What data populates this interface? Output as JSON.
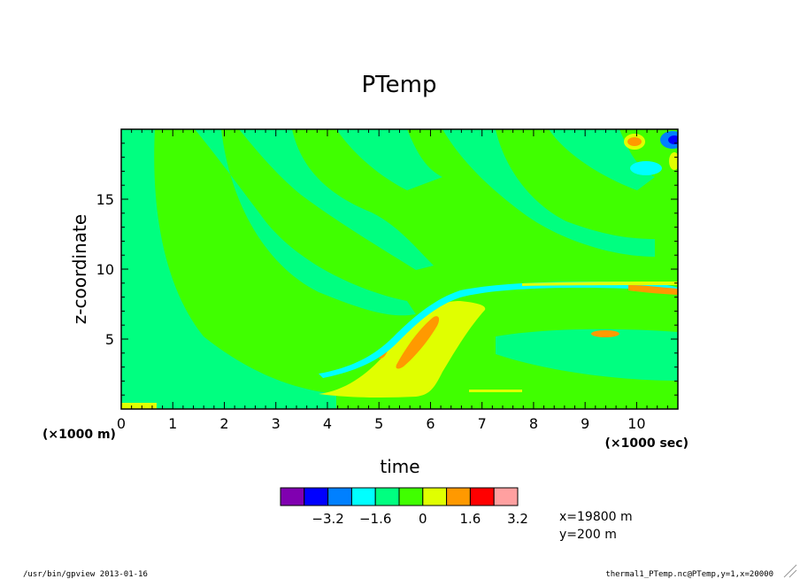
{
  "chart_data": {
    "type": "heatmap",
    "title": "PTemp",
    "xlabel": "time",
    "ylabel": "z-coordinate",
    "x_unit": "(×1000 sec)",
    "y_unit": "(×1000 m)",
    "xlim": [
      0,
      10.8
    ],
    "ylim": [
      0,
      20
    ],
    "x_ticks": [
      0,
      1,
      2,
      3,
      4,
      5,
      6,
      7,
      8,
      9,
      10
    ],
    "y_ticks": [
      5,
      10,
      15
    ],
    "colorbar": {
      "colors": [
        "#8000b0",
        "#0000ff",
        "#0080ff",
        "#00ffff",
        "#00ff80",
        "#40ff00",
        "#e0ff00",
        "#ff9900",
        "#ff0000",
        "#ffa0a0"
      ],
      "tick_labels": [
        "−3.2",
        "−1.6",
        "0",
        "1.6",
        "3.2"
      ]
    },
    "annotations": [
      "x=19800 m",
      "y=200 m"
    ]
  },
  "footer": {
    "left": "/usr/bin/gpview  2013-01-16",
    "right": "thermal1_PTemp.nc@PTemp,y=1,x=20000"
  }
}
